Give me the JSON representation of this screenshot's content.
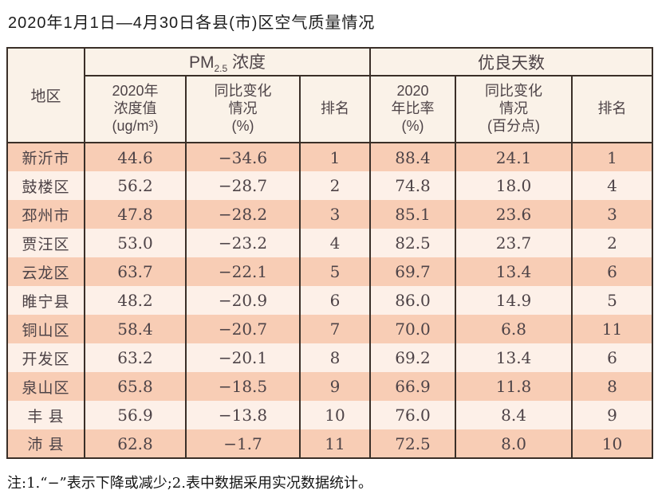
{
  "title": "2020年1月1日—4月30日各县(市)区空气质量情况",
  "colors": {
    "row_dark": "#f8cdb5",
    "row_light": "#fdf0e8",
    "header_bg": "#faf2e8",
    "border": "#3a2f28",
    "cell_text": "#4d4347",
    "title_text": "#1c1c1c",
    "note_text": "#151515",
    "page_bg": "#ffffff"
  },
  "columns": {
    "region": "地区",
    "pm_group": {
      "prefix": "PM",
      "sub": "2.5",
      "suffix": " 浓度"
    },
    "pm_value": {
      "l1": "2020年",
      "l2": "浓度值",
      "l3": "(ug/m³)"
    },
    "pm_change": {
      "l1": "同比变化",
      "l2": "情况",
      "l3": "(%)"
    },
    "pm_rank": "排名",
    "gd_group": "优良天数",
    "gd_value": {
      "l1": "2020",
      "l2": "年比率",
      "l3": "(%)"
    },
    "gd_change": {
      "l1": "同比变化",
      "l2": "情况",
      "l3": "(百分点)"
    },
    "gd_rank": "排名"
  },
  "rows": [
    {
      "region": "新沂市",
      "pm_value": "44.6",
      "pm_change": "−34.6",
      "pm_rank": "1",
      "gd_value": "88.4",
      "gd_change": "24.1",
      "gd_rank": "1"
    },
    {
      "region": "鼓楼区",
      "pm_value": "56.2",
      "pm_change": "−28.7",
      "pm_rank": "2",
      "gd_value": "74.8",
      "gd_change": "18.0",
      "gd_rank": "4"
    },
    {
      "region": "邳州市",
      "pm_value": "47.8",
      "pm_change": "−28.2",
      "pm_rank": "3",
      "gd_value": "85.1",
      "gd_change": "23.6",
      "gd_rank": "3"
    },
    {
      "region": "贾汪区",
      "pm_value": "53.0",
      "pm_change": "−23.2",
      "pm_rank": "4",
      "gd_value": "82.5",
      "gd_change": "23.7",
      "gd_rank": "2"
    },
    {
      "region": "云龙区",
      "pm_value": "63.7",
      "pm_change": "−22.1",
      "pm_rank": "5",
      "gd_value": "69.7",
      "gd_change": "13.4",
      "gd_rank": "6"
    },
    {
      "region": "睢宁县",
      "pm_value": "48.2",
      "pm_change": "−20.9",
      "pm_rank": "6",
      "gd_value": "86.0",
      "gd_change": "14.9",
      "gd_rank": "5"
    },
    {
      "region": "铜山区",
      "pm_value": "58.4",
      "pm_change": "−20.7",
      "pm_rank": "7",
      "gd_value": "70.0",
      "gd_change": "6.8",
      "gd_rank": "11"
    },
    {
      "region": "开发区",
      "pm_value": "63.2",
      "pm_change": "−20.1",
      "pm_rank": "8",
      "gd_value": "69.2",
      "gd_change": "13.4",
      "gd_rank": "6"
    },
    {
      "region": "泉山区",
      "pm_value": "65.8",
      "pm_change": "−18.5",
      "pm_rank": "9",
      "gd_value": "66.9",
      "gd_change": "11.8",
      "gd_rank": "8"
    },
    {
      "region": "丰 县",
      "pm_value": "56.9",
      "pm_change": "−13.8",
      "pm_rank": "10",
      "gd_value": "76.0",
      "gd_change": "8.4",
      "gd_rank": "9"
    },
    {
      "region": "沛 县",
      "pm_value": "62.8",
      "pm_change": "−1.7",
      "pm_rank": "11",
      "gd_value": "72.5",
      "gd_change": "8.0",
      "gd_rank": "10"
    }
  ],
  "note": "注:1.“−”表示下降或减少;2.表中数据采用实况数据统计。"
}
